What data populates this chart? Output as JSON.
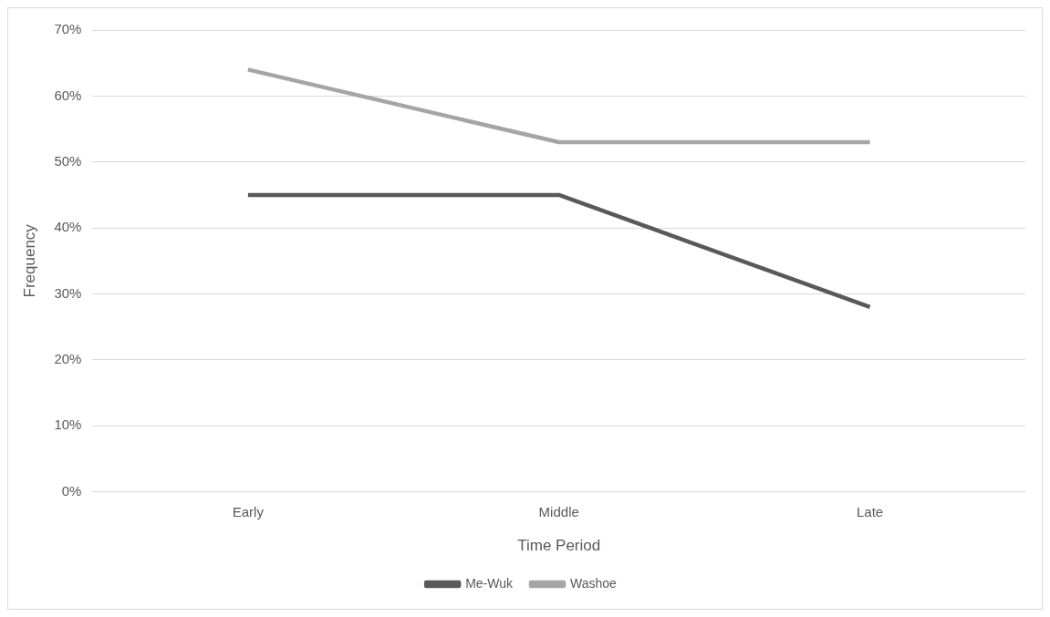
{
  "chart_data": {
    "type": "line",
    "xlabel": "Time Period",
    "ylabel": "Frequency",
    "categories": [
      "Early",
      "Middle",
      "Late"
    ],
    "series": [
      {
        "name": "Me-Wuk",
        "color": "#595959",
        "values": [
          45,
          45,
          28
        ]
      },
      {
        "name": "Washoe",
        "color": "#a5a5a5",
        "values": [
          64,
          53,
          53
        ]
      }
    ],
    "ylim": [
      0,
      70
    ],
    "yticks": [
      {
        "value": 0,
        "label": "0%"
      },
      {
        "value": 10,
        "label": "10%"
      },
      {
        "value": 20,
        "label": "20%"
      },
      {
        "value": 30,
        "label": "30%"
      },
      {
        "value": 40,
        "label": "40%"
      },
      {
        "value": 50,
        "label": "50%"
      },
      {
        "value": 60,
        "label": "60%"
      },
      {
        "value": 70,
        "label": "70%"
      }
    ],
    "grid": "y",
    "legend": "bottom",
    "marker": "none",
    "line_style": "solid"
  }
}
